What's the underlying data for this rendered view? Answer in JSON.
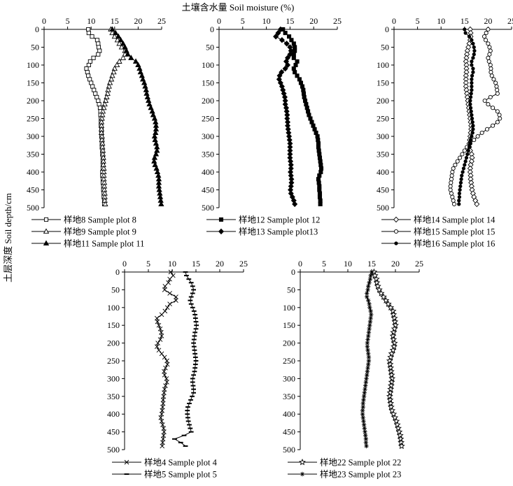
{
  "figure": {
    "xlabel": "土壤含水量 Soil moisture (%)",
    "ylabel": "土层深度 Soil depth/cm"
  },
  "chart_data": [
    {
      "type": "line",
      "xlim": [
        0,
        25
      ],
      "ylim": [
        0,
        500
      ],
      "x_ticks": [
        "0",
        "5",
        "10",
        "15",
        "20",
        "25"
      ],
      "y_ticks": [
        "0",
        "50",
        "100",
        "150",
        "200",
        "250",
        "300",
        "350",
        "400",
        "450",
        "500"
      ],
      "legend_position": "bottom",
      "depths": [
        0,
        10,
        20,
        30,
        40,
        50,
        60,
        70,
        80,
        90,
        100,
        110,
        120,
        130,
        140,
        150,
        160,
        170,
        180,
        190,
        200,
        210,
        220,
        230,
        240,
        250,
        260,
        270,
        280,
        290,
        300,
        310,
        320,
        330,
        340,
        350,
        360,
        370,
        380,
        390,
        400,
        410,
        420,
        430,
        440,
        450,
        460,
        470,
        480,
        490
      ],
      "series": [
        {
          "name": "样地8 Sample plot 8",
          "marker": "square-open",
          "values": [
            9.4,
            9.5,
            10.2,
            11.3,
            11.5,
            11.6,
            11.8,
            11.5,
            10.5,
            9.8,
            9.5,
            9.0,
            9.2,
            9.4,
            9.7,
            10.0,
            10.3,
            10.6,
            10.9,
            11.2,
            11.5,
            11.7,
            11.9,
            12.0,
            12.0,
            12.1,
            12.1,
            12.1,
            12.2,
            12.2,
            12.2,
            12.3,
            12.3,
            12.3,
            12.4,
            12.4,
            12.5,
            12.5,
            12.5,
            12.5,
            12.4,
            12.4,
            12.5,
            12.5,
            12.6,
            12.6,
            12.7,
            12.7,
            12.8,
            12.8
          ]
        },
        {
          "name": "样地9 Sample plot 9",
          "marker": "triangle-open",
          "values": [
            14.2,
            14.5,
            15.0,
            15.6,
            16.0,
            16.5,
            17.2,
            17.2,
            16.8,
            16.0,
            15.5,
            15.0,
            14.8,
            14.5,
            14.3,
            14.0,
            13.8,
            13.6,
            13.5,
            13.3,
            13.1,
            12.9,
            12.7,
            12.5,
            12.4,
            12.3,
            12.2,
            12.2,
            12.2,
            12.2,
            12.3,
            12.3,
            12.4,
            12.4,
            12.5,
            12.5,
            12.6,
            12.6,
            12.6,
            12.7,
            12.7,
            12.7,
            12.7,
            12.8,
            12.8,
            12.8,
            12.9,
            12.9,
            12.9,
            13.0
          ]
        },
        {
          "name": "样地11 Sample plot 11",
          "marker": "triangle-filled",
          "values": [
            14.5,
            15.2,
            15.8,
            16.3,
            16.8,
            17.2,
            17.5,
            17.8,
            18.5,
            19.5,
            20.0,
            20.3,
            20.5,
            20.8,
            21.0,
            21.3,
            21.5,
            21.7,
            21.8,
            22.0,
            22.2,
            22.4,
            22.7,
            23.0,
            23.2,
            23.5,
            23.7,
            23.8,
            23.8,
            23.7,
            23.5,
            23.6,
            23.8,
            24.0,
            24.0,
            23.8,
            23.5,
            23.4,
            23.6,
            23.9,
            24.1,
            24.3,
            24.4,
            24.4,
            24.4,
            24.5,
            24.6,
            24.7,
            24.8,
            24.9
          ]
        }
      ]
    },
    {
      "type": "line",
      "xlim": [
        0,
        25
      ],
      "ylim": [
        0,
        500
      ],
      "x_ticks": [
        "0",
        "5",
        "10",
        "15",
        "20",
        "25"
      ],
      "y_ticks": [
        "0",
        "50",
        "100",
        "150",
        "200",
        "250",
        "300",
        "350",
        "400",
        "450",
        "500"
      ],
      "legend_position": "bottom",
      "depths": [
        0,
        10,
        20,
        30,
        40,
        50,
        60,
        70,
        80,
        90,
        100,
        110,
        120,
        130,
        140,
        150,
        160,
        170,
        180,
        190,
        200,
        210,
        220,
        230,
        240,
        250,
        260,
        270,
        280,
        290,
        300,
        310,
        320,
        330,
        340,
        350,
        360,
        370,
        380,
        390,
        400,
        410,
        420,
        430,
        440,
        450,
        460,
        470,
        480,
        490
      ],
      "series": [
        {
          "name": "样地12 Sample plot 12",
          "marker": "square-filled",
          "values": [
            13.5,
            14.0,
            14.8,
            15.3,
            15.8,
            16.0,
            16.0,
            15.8,
            15.8,
            16.5,
            16.2,
            15.8,
            16.0,
            16.5,
            17.0,
            17.3,
            17.6,
            17.8,
            17.9,
            18.0,
            18.2,
            18.4,
            18.6,
            18.8,
            19.0,
            19.3,
            19.6,
            19.9,
            20.2,
            20.5,
            20.8,
            20.9,
            21.0,
            21.0,
            21.1,
            21.2,
            21.3,
            21.4,
            21.5,
            21.6,
            21.5,
            21.2,
            21.0,
            21.1,
            21.2,
            21.2,
            21.3,
            21.3,
            21.4,
            21.4
          ]
        },
        {
          "name": "样地13 Sample plot13",
          "marker": "diamond-filled",
          "values": [
            13.0,
            12.5,
            12.0,
            13.3,
            14.3,
            15.0,
            15.2,
            15.0,
            14.5,
            14.2,
            14.5,
            14.0,
            13.2,
            12.8,
            12.7,
            13.0,
            13.3,
            13.5,
            13.7,
            13.9,
            14.0,
            14.0,
            14.2,
            14.3,
            14.4,
            14.4,
            14.5,
            14.5,
            14.6,
            14.7,
            14.8,
            14.9,
            15.0,
            15.0,
            15.0,
            15.0,
            15.0,
            15.1,
            15.2,
            15.2,
            15.1,
            15.2,
            15.3,
            15.3,
            15.2,
            15.1,
            15.2,
            15.5,
            15.8,
            16.0
          ]
        }
      ]
    },
    {
      "type": "line",
      "xlim": [
        0,
        25
      ],
      "ylim": [
        0,
        500
      ],
      "x_ticks": [
        "0",
        "5",
        "10",
        "15",
        "20",
        "25"
      ],
      "y_ticks": [
        "0",
        "50",
        "100",
        "150",
        "200",
        "250",
        "300",
        "350",
        "400",
        "450",
        "500"
      ],
      "legend_position": "bottom",
      "depths": [
        0,
        10,
        20,
        30,
        40,
        50,
        60,
        70,
        80,
        90,
        100,
        110,
        120,
        130,
        140,
        150,
        160,
        170,
        180,
        190,
        200,
        210,
        220,
        230,
        240,
        250,
        260,
        270,
        280,
        290,
        300,
        310,
        320,
        330,
        340,
        350,
        360,
        370,
        380,
        390,
        400,
        410,
        420,
        430,
        440,
        450,
        460,
        470,
        480,
        490
      ],
      "series": [
        {
          "name": "样地14 Sample plot 14",
          "marker": "diamond-open",
          "values": [
            16.2,
            16.3,
            16.3,
            16.2,
            16.0,
            15.8,
            15.6,
            15.5,
            15.4,
            15.3,
            15.4,
            15.4,
            15.4,
            15.3,
            15.3,
            15.3,
            15.3,
            15.4,
            15.5,
            15.6,
            15.7,
            15.8,
            15.9,
            16.0,
            16.1,
            16.2,
            16.3,
            16.4,
            16.4,
            16.3,
            16.2,
            16.1,
            16.0,
            16.0,
            16.2,
            16.5,
            16.6,
            16.5,
            16.3,
            16.2,
            16.2,
            16.3,
            16.3,
            16.4,
            16.5,
            16.6,
            16.8,
            17.0,
            17.3,
            17.6
          ]
        },
        {
          "name": "样地15 Sample plot 15",
          "marker": "circle-open",
          "values": [
            20.0,
            19.6,
            19.2,
            19.5,
            20.0,
            20.3,
            20.5,
            20.3,
            20.0,
            20.2,
            20.5,
            20.6,
            20.6,
            20.8,
            21.2,
            21.6,
            21.8,
            21.9,
            22.0,
            20.5,
            19.3,
            20.0,
            21.0,
            22.0,
            22.4,
            22.5,
            22.0,
            21.0,
            19.8,
            18.7,
            17.8,
            17.0,
            16.2,
            15.5,
            15.0,
            14.5,
            14.0,
            13.5,
            13.0,
            12.6,
            12.4,
            12.3,
            12.2,
            12.1,
            12.0,
            12.0,
            12.2,
            12.4,
            12.6,
            12.8
          ]
        },
        {
          "name": "样地16 Sample plot 16",
          "marker": "circle-filled",
          "values": [
            15.0,
            15.2,
            16.0,
            16.5,
            16.8,
            17.0,
            17.1,
            17.0,
            16.8,
            16.5,
            16.5,
            16.8,
            16.8,
            16.6,
            16.5,
            16.5,
            16.5,
            16.5,
            16.4,
            16.3,
            16.2,
            16.2,
            16.3,
            16.4,
            16.5,
            16.6,
            16.7,
            16.8,
            16.8,
            16.7,
            16.5,
            16.3,
            16.2,
            16.0,
            15.8,
            15.6,
            15.4,
            15.2,
            15.0,
            14.8,
            14.6,
            14.4,
            14.3,
            14.2,
            14.1,
            14.0,
            13.9,
            13.9,
            13.8,
            13.8
          ]
        }
      ]
    },
    {
      "type": "line",
      "xlim": [
        0,
        25
      ],
      "ylim": [
        0,
        500
      ],
      "x_ticks": [
        "0",
        "5",
        "10",
        "15",
        "20",
        "25"
      ],
      "y_ticks": [
        "0",
        "50",
        "100",
        "150",
        "200",
        "250",
        "300",
        "350",
        "400",
        "450",
        "500"
      ],
      "legend_position": "bottom",
      "depths": [
        0,
        10,
        20,
        30,
        40,
        50,
        60,
        70,
        80,
        90,
        100,
        110,
        120,
        130,
        140,
        150,
        160,
        170,
        180,
        190,
        200,
        210,
        220,
        230,
        240,
        250,
        260,
        270,
        280,
        290,
        300,
        310,
        320,
        330,
        340,
        350,
        360,
        370,
        380,
        390,
        400,
        410,
        420,
        430,
        440,
        450,
        460,
        470,
        480,
        490
      ],
      "series": [
        {
          "name": "样地4 Sample plot 4",
          "marker": "x",
          "values": [
            9.7,
            10.2,
            9.5,
            9.2,
            8.5,
            8.4,
            9.5,
            10.8,
            10.8,
            9.5,
            9.0,
            8.5,
            7.8,
            6.8,
            6.9,
            7.2,
            7.5,
            7.7,
            7.8,
            7.5,
            7.0,
            6.8,
            7.2,
            7.8,
            8.4,
            8.9,
            9.0,
            8.6,
            8.3,
            8.4,
            8.8,
            8.9,
            8.6,
            8.4,
            8.3,
            8.2,
            8.1,
            8.1,
            8.0,
            7.9,
            7.8,
            7.6,
            7.8,
            8.0,
            8.2,
            8.3,
            8.2,
            8.1,
            8.0,
            7.9
          ]
        },
        {
          "name": "样地5 Sample plot 5",
          "marker": "dash",
          "values": [
            12.8,
            13.0,
            13.5,
            14.0,
            14.3,
            14.5,
            14.3,
            14.0,
            13.8,
            14.0,
            14.3,
            14.6,
            14.8,
            14.9,
            15.0,
            15.1,
            15.0,
            14.8,
            14.7,
            14.6,
            14.5,
            14.6,
            14.7,
            14.8,
            14.9,
            15.0,
            14.9,
            14.8,
            14.7,
            14.5,
            14.3,
            14.3,
            14.4,
            14.5,
            14.5,
            14.2,
            13.9,
            13.6,
            13.3,
            13.2,
            13.2,
            13.3,
            13.4,
            13.6,
            13.8,
            14.0,
            12.5,
            10.5,
            11.8,
            12.8
          ]
        }
      ]
    },
    {
      "type": "line",
      "xlim": [
        0,
        25
      ],
      "ylim": [
        0,
        500
      ],
      "x_ticks": [
        "0",
        "5",
        "10",
        "15",
        "20",
        "25"
      ],
      "y_ticks": [
        "0",
        "50",
        "100",
        "150",
        "200",
        "250",
        "300",
        "350",
        "400",
        "450",
        "500"
      ],
      "legend_position": "bottom",
      "depths": [
        0,
        10,
        20,
        30,
        40,
        50,
        60,
        70,
        80,
        90,
        100,
        110,
        120,
        130,
        140,
        150,
        160,
        170,
        180,
        190,
        200,
        210,
        220,
        230,
        240,
        250,
        260,
        270,
        280,
        290,
        300,
        310,
        320,
        330,
        340,
        350,
        360,
        370,
        380,
        390,
        400,
        410,
        420,
        430,
        440,
        450,
        460,
        470,
        480,
        490
      ],
      "series": [
        {
          "name": "样地22 Sample plot 22",
          "marker": "star-open",
          "values": [
            15.5,
            15.7,
            16.0,
            16.1,
            16.3,
            16.6,
            17.0,
            17.5,
            18.0,
            18.5,
            19.0,
            19.5,
            19.6,
            19.8,
            19.9,
            20.0,
            19.8,
            19.6,
            19.5,
            19.6,
            19.8,
            19.7,
            19.5,
            19.2,
            19.0,
            18.8,
            18.9,
            19.0,
            19.1,
            19.2,
            19.3,
            19.2,
            19.1,
            19.0,
            18.9,
            18.8,
            18.9,
            19.0,
            19.1,
            19.3,
            19.6,
            19.9,
            20.2,
            20.4,
            20.6,
            20.8,
            21.0,
            21.1,
            21.2,
            21.3
          ]
        },
        {
          "name": "样地23 Sample plot 23",
          "marker": "star-filled",
          "values": [
            15.0,
            14.8,
            14.7,
            14.5,
            14.3,
            14.2,
            14.0,
            14.0,
            14.3,
            14.5,
            14.6,
            14.8,
            14.9,
            14.8,
            14.7,
            14.6,
            14.5,
            14.4,
            14.3,
            14.2,
            14.1,
            14.1,
            14.2,
            14.3,
            14.4,
            14.4,
            14.3,
            14.2,
            14.1,
            14.0,
            13.9,
            13.8,
            13.7,
            13.6,
            13.5,
            13.4,
            13.3,
            13.2,
            13.2,
            13.1,
            13.1,
            13.2,
            13.3,
            13.4,
            13.5,
            13.6,
            13.7,
            13.8,
            13.8,
            13.9
          ]
        }
      ]
    }
  ]
}
